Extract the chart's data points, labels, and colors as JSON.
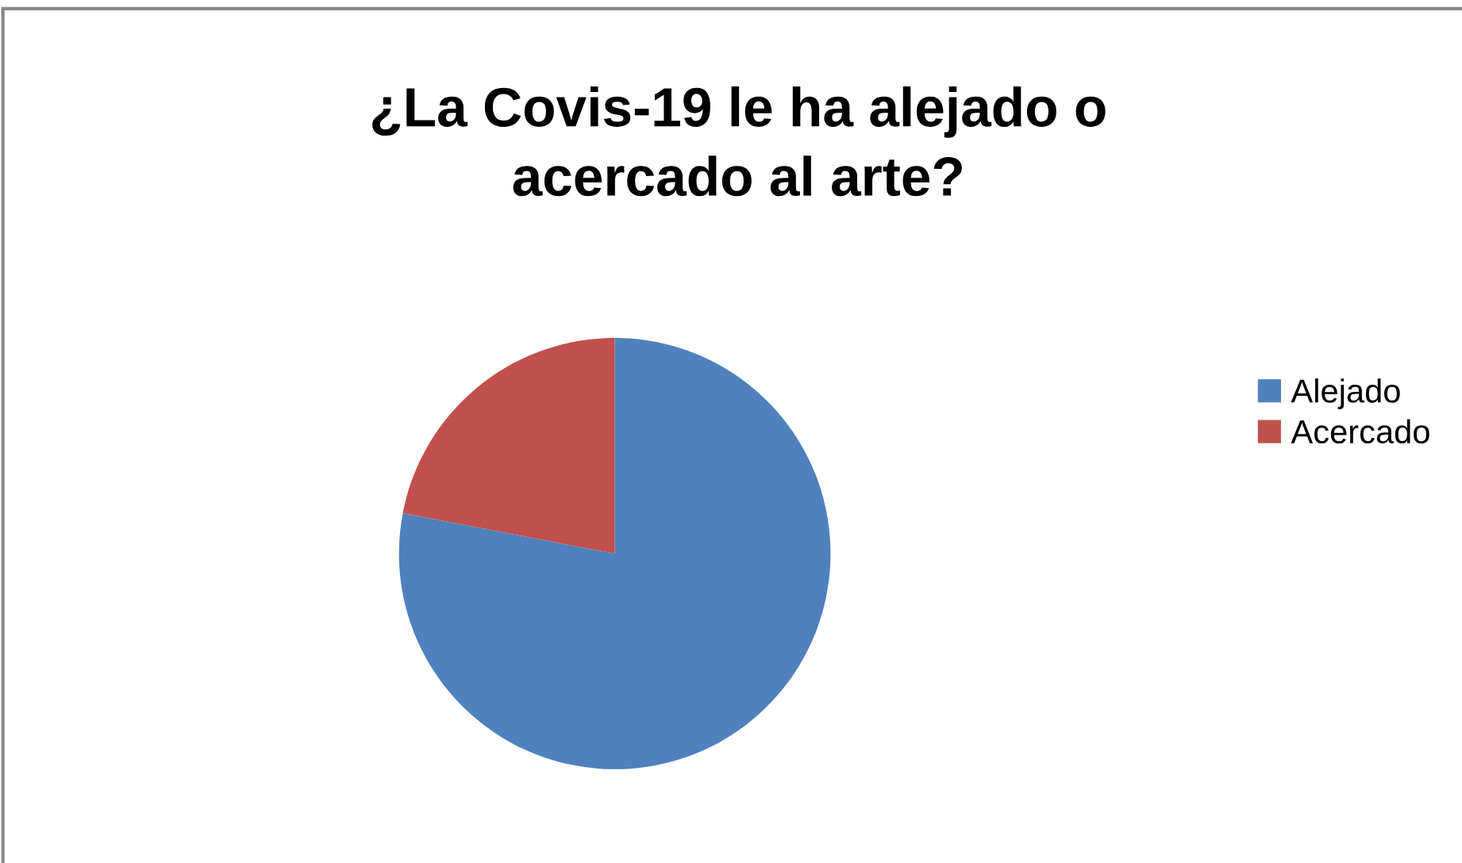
{
  "chart_data": {
    "type": "pie",
    "title": "¿La Covis-19 le ha alejado o\nacercado al arte?",
    "categories": [
      "Alejado",
      "Acercado"
    ],
    "values": [
      78,
      22
    ],
    "colors": [
      "#4f81bd",
      "#c0504d"
    ],
    "legend": "right"
  }
}
